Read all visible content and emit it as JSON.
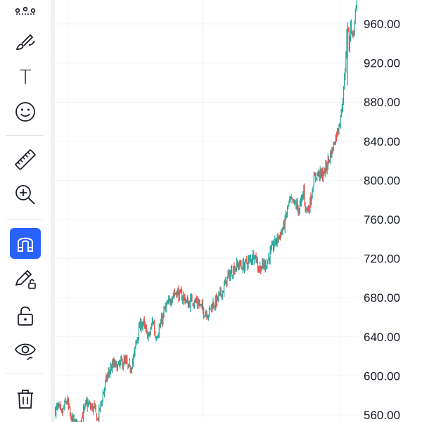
{
  "toolbar": {
    "tools": [
      {
        "name": "pattern-tool",
        "icon": "pattern-icon"
      },
      {
        "name": "brush-tool",
        "icon": "brush-icon"
      },
      {
        "name": "text-tool",
        "icon": "text-icon"
      },
      {
        "name": "emoji-tool",
        "icon": "emoji-icon"
      },
      {
        "name": "ruler-tool",
        "icon": "ruler-icon"
      },
      {
        "name": "zoom-in-tool",
        "icon": "zoom-in-icon"
      },
      {
        "name": "magnet-tool",
        "icon": "magnet-icon",
        "active": true
      },
      {
        "name": "lock-drawings-tool",
        "icon": "pencil-lock-icon"
      },
      {
        "name": "lock-all-tool",
        "icon": "unlock-icon"
      },
      {
        "name": "hide-drawings-tool",
        "icon": "eye-icon"
      },
      {
        "name": "delete-tool",
        "icon": "trash-icon"
      }
    ],
    "text_tool_glyph": "T"
  },
  "colors": {
    "up": "#26a69a",
    "down": "#ef5350",
    "grid": "#f0f3fa",
    "accent": "#2962ff",
    "text": "#131722"
  },
  "chart_data": {
    "type": "candlestick",
    "y_axis": {
      "position": "right",
      "range": [
        545,
        985
      ],
      "ticks": [
        "960.00",
        "920.00",
        "880.00",
        "840.00",
        "800.00",
        "760.00",
        "720.00",
        "680.00",
        "640.00",
        "600.00",
        "560.00"
      ]
    },
    "grid": true,
    "close_path": [
      [
        0,
        565
      ],
      [
        4,
        568
      ],
      [
        8,
        560
      ],
      [
        12,
        570
      ],
      [
        15,
        575
      ],
      [
        20,
        556
      ],
      [
        25,
        552
      ],
      [
        30,
        548
      ],
      [
        35,
        560
      ],
      [
        40,
        572
      ],
      [
        45,
        568
      ],
      [
        50,
        567
      ],
      [
        54,
        555
      ],
      [
        58,
        570
      ],
      [
        62,
        585
      ],
      [
        66,
        598
      ],
      [
        70,
        606
      ],
      [
        75,
        612
      ],
      [
        80,
        609
      ],
      [
        85,
        614
      ],
      [
        90,
        614
      ],
      [
        95,
        606
      ],
      [
        100,
        617
      ],
      [
        104,
        637
      ],
      [
        108,
        650
      ],
      [
        112,
        655
      ],
      [
        116,
        645
      ],
      [
        120,
        640
      ],
      [
        125,
        658
      ],
      [
        128,
        640
      ],
      [
        132,
        646
      ],
      [
        136,
        655
      ],
      [
        140,
        668
      ],
      [
        145,
        674
      ],
      [
        150,
        683
      ],
      [
        155,
        686
      ],
      [
        160,
        682
      ],
      [
        165,
        680
      ],
      [
        170,
        673
      ],
      [
        175,
        678
      ],
      [
        180,
        676
      ],
      [
        185,
        673
      ],
      [
        190,
        666
      ],
      [
        196,
        664
      ],
      [
        200,
        672
      ],
      [
        205,
        675
      ],
      [
        210,
        682
      ],
      [
        215,
        688
      ],
      [
        220,
        700
      ],
      [
        225,
        706
      ],
      [
        230,
        711
      ],
      [
        235,
        714
      ],
      [
        240,
        712
      ],
      [
        245,
        716
      ],
      [
        250,
        719
      ],
      [
        255,
        726
      ],
      [
        260,
        710
      ],
      [
        265,
        712
      ],
      [
        270,
        715
      ],
      [
        275,
        725
      ],
      [
        280,
        735
      ],
      [
        284,
        740
      ],
      [
        288,
        745
      ],
      [
        292,
        752
      ],
      [
        295,
        762
      ],
      [
        298,
        774
      ],
      [
        300,
        778
      ],
      [
        304,
        777
      ],
      [
        308,
        775
      ],
      [
        312,
        770
      ],
      [
        316,
        782
      ],
      [
        318,
        790
      ],
      [
        320,
        772
      ],
      [
        324,
        770
      ],
      [
        328,
        785
      ],
      [
        330,
        798
      ],
      [
        334,
        806
      ],
      [
        338,
        807
      ],
      [
        342,
        805
      ],
      [
        346,
        812
      ],
      [
        350,
        822
      ],
      [
        354,
        830
      ],
      [
        358,
        842
      ],
      [
        362,
        853
      ],
      [
        366,
        870
      ],
      [
        369,
        890
      ],
      [
        371,
        915
      ],
      [
        373,
        950
      ],
      [
        374,
        960
      ],
      [
        376,
        938
      ],
      [
        378,
        960
      ],
      [
        380,
        948
      ],
      [
        382,
        952
      ],
      [
        384,
        970
      ],
      [
        386,
        982
      ]
    ],
    "outlier_down_index": 374,
    "outlier_down_low": 897
  }
}
